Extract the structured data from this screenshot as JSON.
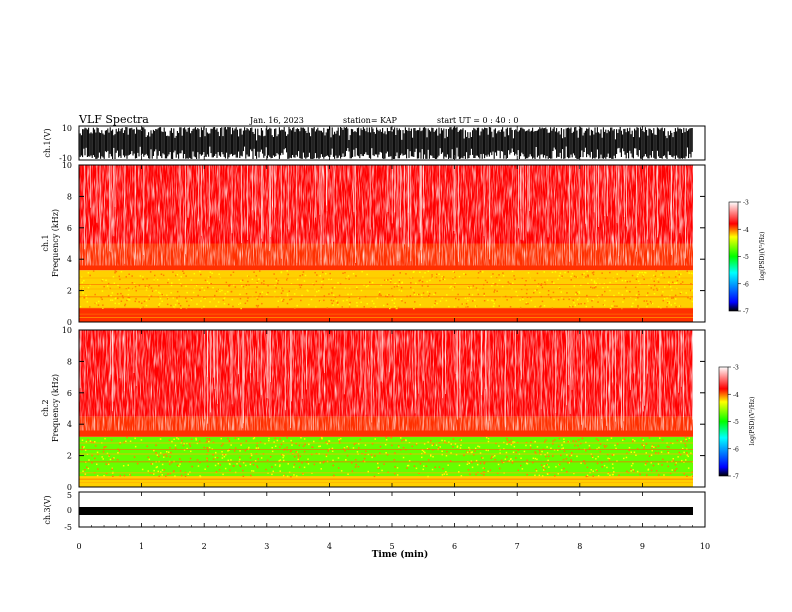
{
  "header": {
    "title": "VLF Spectra",
    "date": "Jan. 16, 2023",
    "station": "station= KAP",
    "start_ut": "start  UT  =   0  : 40 : 0"
  },
  "colors": {
    "spectrogram_base": "#ff0000",
    "spectrogram_mid": "#ffff00",
    "spectrogram_low": "#00ff00",
    "waveform": "#000000"
  },
  "chart_data": [
    {
      "type": "line",
      "panel": "ch1-waveform",
      "ylabel": "ch.1(V)",
      "ylim": [
        -10,
        10
      ],
      "yticks": [
        "10",
        "-10"
      ],
      "xlim": [
        0,
        10
      ]
    },
    {
      "type": "heatmap",
      "panel": "ch1-spectrogram",
      "ylabel": "ch.1\nFrequency (kHz)",
      "ylim": [
        0,
        10
      ],
      "yticks": [
        "0",
        "2",
        "4",
        "6",
        "8",
        "10"
      ],
      "xlim": [
        0,
        9.8
      ],
      "colorbar": {
        "label": "log(PSD)(V²/Hz)",
        "range": [
          -7,
          -3
        ],
        "ticks": [
          "-3",
          "-4",
          "-5",
          "-6",
          "-7"
        ]
      },
      "bands": [
        {
          "freq_kHz": [
            0,
            0.9
          ],
          "level": -4.2
        },
        {
          "freq_kHz": [
            0.9,
            3.3
          ],
          "level": -4.5
        },
        {
          "freq_kHz": [
            3.3,
            5.0
          ],
          "level": -4.0
        },
        {
          "freq_kHz": [
            5.0,
            10
          ],
          "level": -3.3
        }
      ]
    },
    {
      "type": "heatmap",
      "panel": "ch2-spectrogram",
      "ylabel": "ch.2\nFrequency (kHz)",
      "ylim": [
        0,
        10
      ],
      "yticks": [
        "0",
        "2",
        "4",
        "6",
        "8",
        "10"
      ],
      "xlim": [
        0,
        9.8
      ],
      "colorbar": {
        "label": "log(PSD)(V²/Hz)",
        "range": [
          -7,
          -3
        ],
        "ticks": [
          "-3",
          "-4",
          "-5",
          "-6",
          "-7"
        ]
      },
      "bands": [
        {
          "freq_kHz": [
            0,
            0.7
          ],
          "level": -4.3
        },
        {
          "freq_kHz": [
            0.7,
            3.2
          ],
          "level": -5.0
        },
        {
          "freq_kHz": [
            3.2,
            4.5
          ],
          "level": -4.0
        },
        {
          "freq_kHz": [
            4.5,
            10
          ],
          "level": -3.3
        }
      ]
    },
    {
      "type": "line",
      "panel": "ch3-waveform",
      "ylabel": "ch.3(V)",
      "ylim": [
        -5,
        5
      ],
      "yticks": [
        "5",
        "0",
        "-5"
      ],
      "xlim": [
        0,
        10
      ]
    }
  ],
  "xaxis": {
    "label": "Time  (min)",
    "ticks": [
      "0",
      "1",
      "2",
      "3",
      "4",
      "5",
      "6",
      "7",
      "8",
      "9",
      "10"
    ]
  }
}
